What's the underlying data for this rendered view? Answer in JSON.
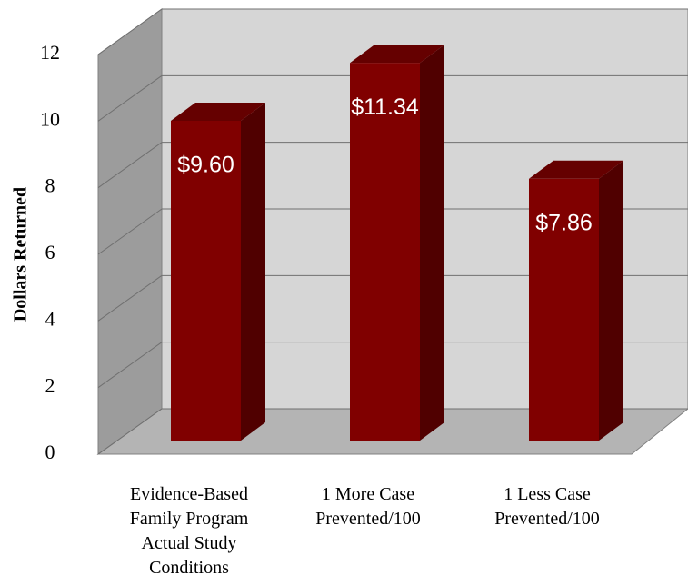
{
  "chart_data": {
    "type": "bar3d",
    "y_axis_label": "Dollars Returned",
    "categories": [
      "Evidence-Based\nFamily Program\nActual Study\nConditions",
      "1 More Case\nPrevented/100",
      "1 Less Case\nPrevented/100"
    ],
    "values": [
      9.6,
      11.34,
      7.86
    ],
    "value_labels": [
      "$9.60",
      "$11.34",
      "$7.86"
    ],
    "color": "#800000",
    "ylim": [
      0,
      12
    ],
    "yticks": [
      0,
      2,
      4,
      6,
      8,
      10,
      12
    ],
    "grid": true
  }
}
